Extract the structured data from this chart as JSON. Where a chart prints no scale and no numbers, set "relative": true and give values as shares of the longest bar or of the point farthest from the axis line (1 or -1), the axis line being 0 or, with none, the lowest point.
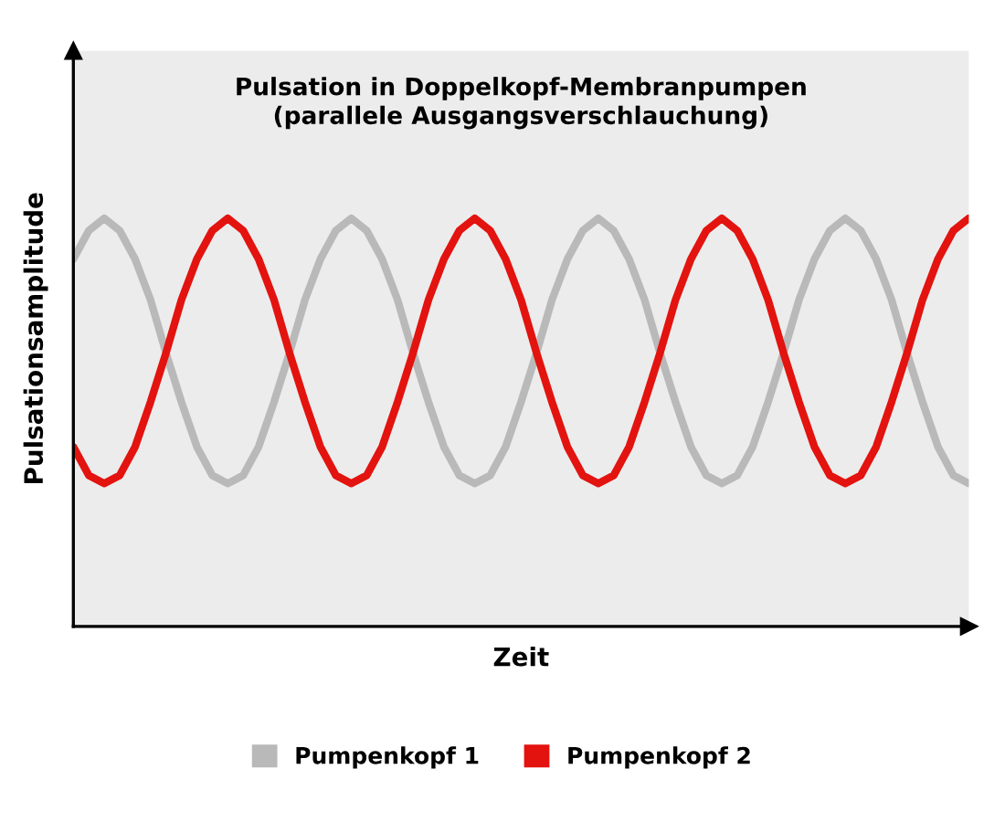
{
  "chart_data": {
    "type": "line",
    "relative": true,
    "title": "Pulsation in Doppelkopf-Membranpumpen\n(parallele Ausgangsverschlauchung)",
    "xlabel": "Zeit",
    "ylabel": "Pulsationsamplitude",
    "legend": "bottom",
    "marker": "none",
    "line_style": "solid",
    "categories": [
      null,
      null,
      null,
      null,
      null,
      null,
      null,
      null,
      null,
      null,
      null,
      null,
      null,
      null,
      null,
      null,
      null,
      null,
      null,
      null,
      null,
      null,
      null,
      null,
      null,
      null,
      null,
      null,
      null,
      null,
      null,
      null,
      null,
      null,
      null,
      null,
      null,
      null,
      null,
      null,
      null,
      null,
      null,
      null,
      null,
      null,
      null,
      null,
      null,
      null,
      null,
      null,
      null,
      null,
      null,
      null,
      null,
      null,
      null
    ],
    "series": [
      {
        "name": "Pumpenkopf 1",
        "color": "#b9b9b9",
        "values": [
          0.9,
          0.97,
          1,
          0.97,
          0.9,
          0.8,
          0.67,
          0.55,
          0.44,
          0.37,
          0.35,
          0.37,
          0.44,
          0.55,
          0.67,
          0.8,
          0.9,
          0.97,
          1,
          0.97,
          0.9,
          0.8,
          0.67,
          0.55,
          0.44,
          0.37,
          0.35,
          0.37,
          0.44,
          0.55,
          0.67,
          0.8,
          0.9,
          0.97,
          1,
          0.97,
          0.9,
          0.8,
          0.67,
          0.55,
          0.44,
          0.37,
          0.35,
          0.37,
          0.44,
          0.55,
          0.67,
          0.8,
          0.9,
          0.97,
          1,
          0.97,
          0.9,
          0.8,
          0.67,
          0.55,
          0.44,
          0.37,
          0.35
        ]
      },
      {
        "name": "Pumpenkopf 2",
        "color": "#e3130f",
        "values": [
          0.44,
          0.37,
          0.35,
          0.37,
          0.44,
          0.55,
          0.67,
          0.8,
          0.9,
          0.97,
          1,
          0.97,
          0.9,
          0.8,
          0.67,
          0.55,
          0.44,
          0.37,
          0.35,
          0.37,
          0.44,
          0.55,
          0.67,
          0.8,
          0.9,
          0.97,
          1,
          0.97,
          0.9,
          0.8,
          0.67,
          0.55,
          0.44,
          0.37,
          0.35,
          0.37,
          0.44,
          0.55,
          0.67,
          0.8,
          0.9,
          0.97,
          1,
          0.97,
          0.9,
          0.8,
          0.67,
          0.55,
          0.44,
          0.37,
          0.35,
          0.37,
          0.44,
          0.55,
          0.67,
          0.8,
          0.9,
          0.97,
          1
        ]
      }
    ]
  }
}
